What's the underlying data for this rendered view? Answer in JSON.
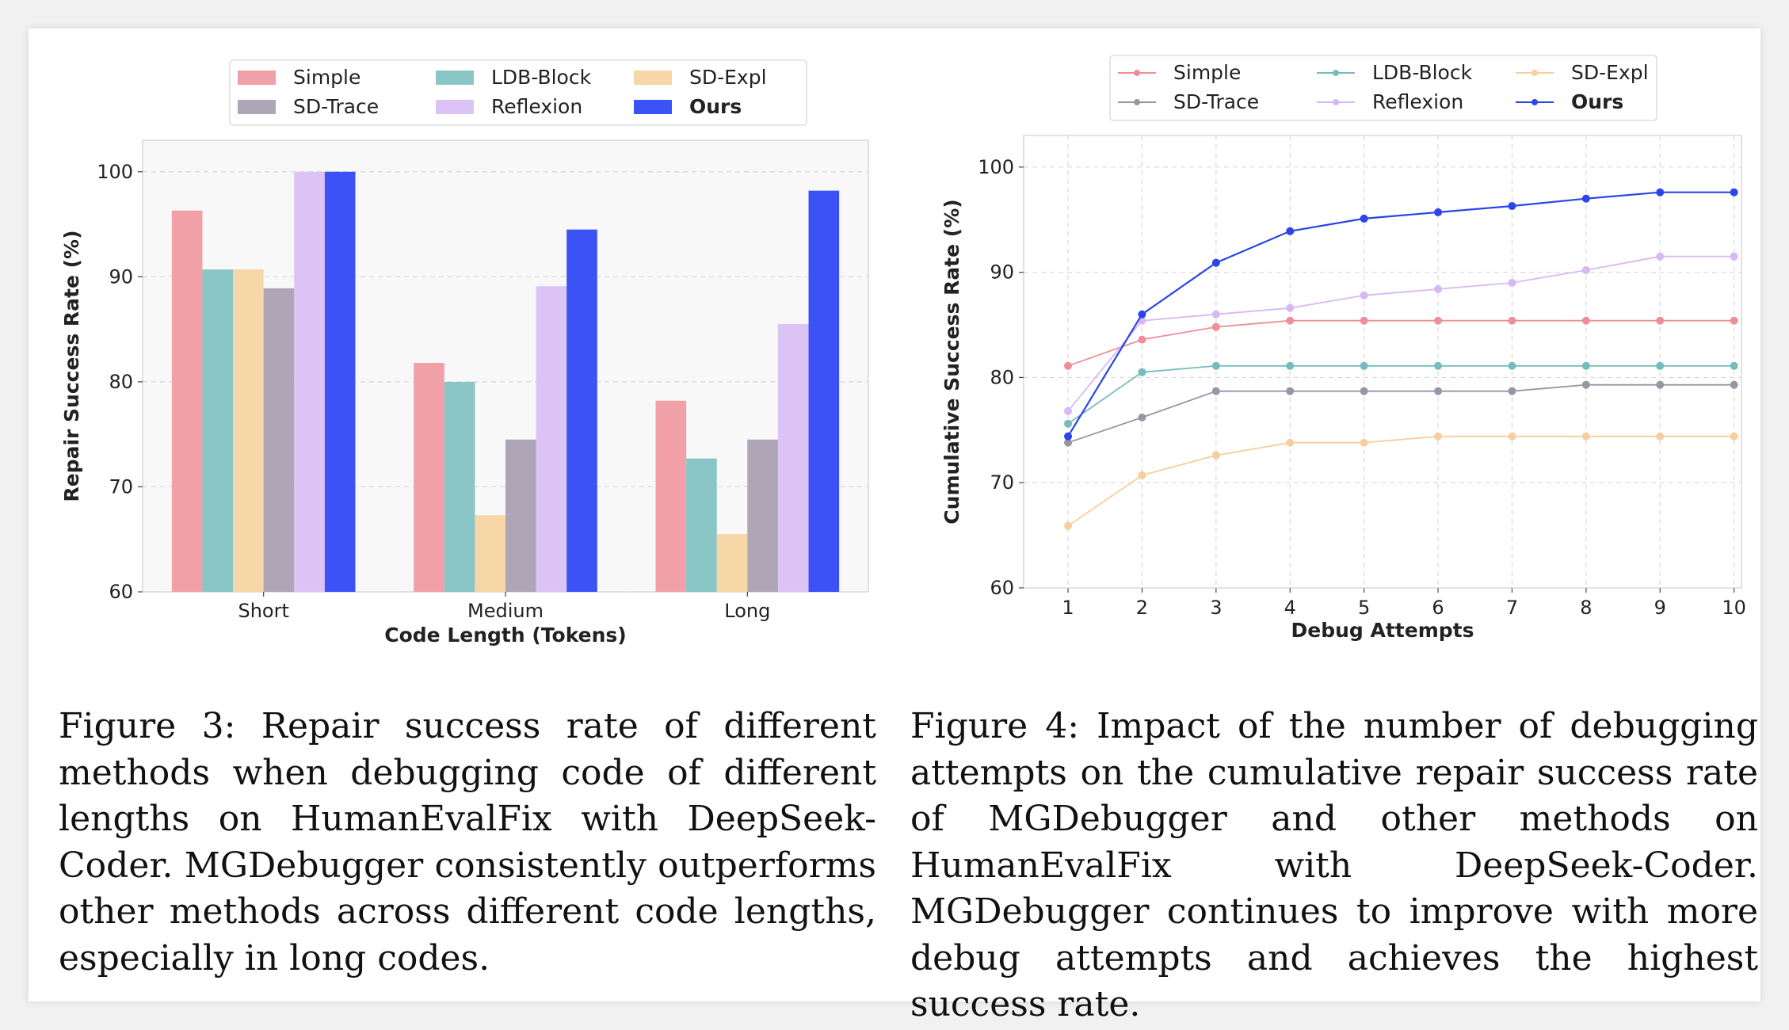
{
  "chart_data": [
    {
      "type": "bar",
      "xlabel": "Code Length (Tokens)",
      "ylabel": "Repair Success Rate (%)",
      "categories": [
        "Short",
        "Medium",
        "Long"
      ],
      "ylim": [
        60,
        103
      ],
      "yticks": [
        60,
        70,
        80,
        90,
        100
      ],
      "grid": true,
      "legend_position": "top-center",
      "legend_columns": 3,
      "series": [
        {
          "name": "Simple",
          "color": "#f0a0a6",
          "values": [
            96.3,
            81.8,
            78.2
          ]
        },
        {
          "name": "LDB-Block",
          "color": "#8ac6c5",
          "values": [
            90.7,
            80.0,
            72.7
          ]
        },
        {
          "name": "SD-Expl",
          "color": "#f7d6a7",
          "values": [
            90.7,
            67.3,
            65.5
          ]
        },
        {
          "name": "SD-Trace",
          "color": "#aea5b6",
          "values": [
            88.9,
            74.5,
            74.5
          ]
        },
        {
          "name": "Reflexion",
          "color": "#dcc3f5",
          "values": [
            100.0,
            89.1,
            85.5
          ]
        },
        {
          "name": "Ours",
          "color": "#3b52f5",
          "values": [
            100.0,
            94.5,
            98.2
          ],
          "bold": true
        }
      ]
    },
    {
      "type": "line",
      "xlabel": "Debug Attempts",
      "ylabel": "Cumulative Success Rate (%)",
      "x": [
        1,
        2,
        3,
        4,
        5,
        6,
        7,
        8,
        9,
        10
      ],
      "xlim": [
        0.4,
        10.1
      ],
      "ylim": [
        60,
        103
      ],
      "yticks": [
        60,
        70,
        80,
        90,
        100
      ],
      "grid": true,
      "legend_position": "top-center",
      "legend_columns": 3,
      "series": [
        {
          "name": "Simple",
          "color": "#ee8f97",
          "values": [
            81.1,
            83.6,
            84.8,
            85.4,
            85.4,
            85.4,
            85.4,
            85.4,
            85.4,
            85.4
          ]
        },
        {
          "name": "LDB-Block",
          "color": "#76bcbc",
          "values": [
            75.6,
            80.5,
            81.1,
            81.1,
            81.1,
            81.1,
            81.1,
            81.1,
            81.1,
            81.1
          ]
        },
        {
          "name": "SD-Expl",
          "color": "#f6cf9c",
          "values": [
            65.9,
            70.7,
            72.6,
            73.8,
            73.8,
            74.4,
            74.4,
            74.4,
            74.4,
            74.4
          ]
        },
        {
          "name": "SD-Trace",
          "color": "#9c94a4",
          "values": [
            73.8,
            76.2,
            78.7,
            78.7,
            78.7,
            78.7,
            78.7,
            79.3,
            79.3,
            79.3
          ]
        },
        {
          "name": "Reflexion",
          "color": "#d8b8f4",
          "values": [
            76.8,
            85.4,
            86.0,
            86.6,
            87.8,
            88.4,
            89.0,
            90.2,
            91.5,
            91.5
          ]
        },
        {
          "name": "Ours",
          "color": "#2b45ea",
          "values": [
            74.4,
            86.0,
            90.9,
            93.9,
            95.1,
            95.7,
            96.3,
            97.0,
            97.6,
            97.6
          ],
          "bold": true
        }
      ]
    }
  ],
  "captions": {
    "figure3": "Figure 3: Repair success rate of different meth­ods when debugging code of different lengths on HumanEvalFix with DeepSeek-Coder. MGDe­bugger consistently outperforms other methods across different code lengths, especially in long codes.",
    "figure4": "Figure 4: Impact of the number of debugging at­tempts on the cumulative repair success rate of MGDebugger and other methods on HumanEval­Fix with DeepSeek-Coder. MGDebugger con­tinues to improve with more debug attempts and achieves the highest success rate."
  }
}
